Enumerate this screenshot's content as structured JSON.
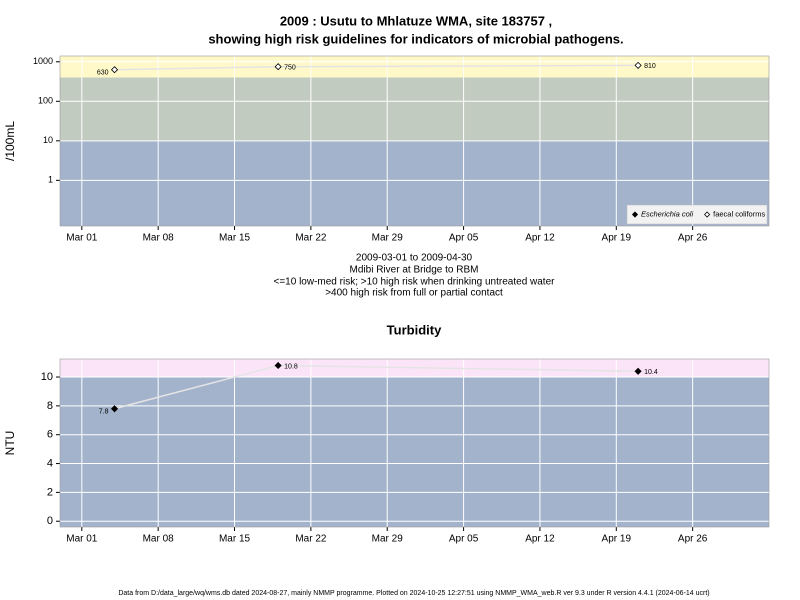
{
  "chart_data": [
    {
      "type": "scatter",
      "title_lines": [
        "2009 : Usutu to Mhlatuze WMA, site 183757 ,",
        "showing high risk guidelines for indicators of microbial pathogens."
      ],
      "subtitle_lines": [
        "2009-03-01 to 2009-04-30",
        "Mdibi River at Bridge to RBM",
        "<=10 low-med risk; >10 high risk when drinking untreated water",
        ">400 high risk from full or partial contact"
      ],
      "ylabel": "/100mL",
      "log_y": true,
      "grid": true,
      "legend": "bottom-right",
      "x": [
        "Mar 04",
        "Mar 19",
        "Apr 21"
      ],
      "xlim": [
        "Feb 27",
        "May 03"
      ],
      "xticks": [
        "Mar 01",
        "Mar 08",
        "Mar 15",
        "Mar 22",
        "Mar 29",
        "Apr 05",
        "Apr 12",
        "Apr 19",
        "Apr 26"
      ],
      "ylim": [
        0.07,
        1400
      ],
      "yticks": [
        1,
        10,
        100,
        1000
      ],
      "bands": [
        {
          "from": 0.07,
          "to": 10,
          "color": "#a3b3cc"
        },
        {
          "from": 10,
          "to": 400,
          "color": "#c2cbbf"
        },
        {
          "from": 400,
          "to": 1400,
          "color": "#fff8c8"
        }
      ],
      "series": [
        {
          "name": "Escherichia coli",
          "color": "#000000",
          "marker": "filled",
          "values": [
            null,
            null,
            null
          ]
        },
        {
          "name": "faecal coliforms",
          "color": "#000000",
          "marker": "open",
          "values": [
            630,
            750,
            810
          ]
        }
      ]
    },
    {
      "type": "scatter",
      "title": "Turbidity",
      "ylabel": "NTU",
      "log_y": false,
      "grid": true,
      "x": [
        "Mar 04",
        "Mar 19",
        "Apr 21"
      ],
      "xlim": [
        "Feb 27",
        "May 03"
      ],
      "xticks": [
        "Mar 01",
        "Mar 08",
        "Mar 15",
        "Mar 22",
        "Mar 29",
        "Apr 05",
        "Apr 12",
        "Apr 19",
        "Apr 26"
      ],
      "ylim": [
        -0.4,
        11.25
      ],
      "yticks": [
        0,
        2,
        4,
        6,
        8,
        10
      ],
      "bands": [
        {
          "from": -0.4,
          "to": 10,
          "color": "#a3b3cc"
        },
        {
          "from": 10,
          "to": 11.25,
          "color": "#fce4f8"
        }
      ],
      "series": [
        {
          "name": "Turbidity",
          "color": "#000000",
          "marker": "filled",
          "values": [
            7.8,
            10.8,
            10.4
          ]
        }
      ]
    }
  ],
  "footer": "Data from D:/data_large/wq/wms.db dated 2024-08-27, mainly NMMP programme. Plotted on 2024-10-25 12:27:51 using NMMP_WMA_web.R ver 9.3 under R version 4.4.1 (2024-06-14 ucrt)"
}
